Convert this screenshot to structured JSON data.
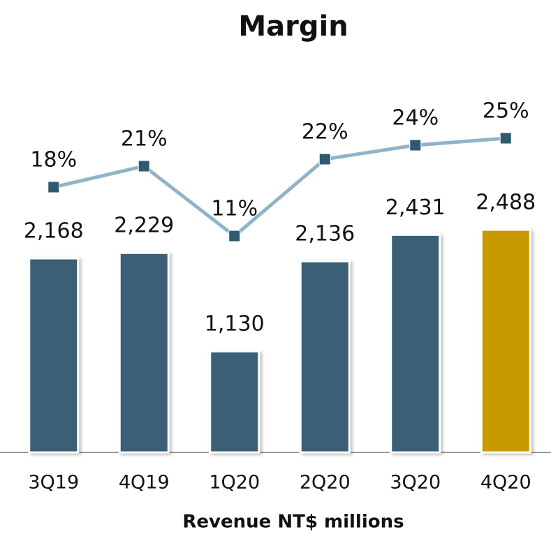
{
  "chart_data": {
    "type": "bar_line",
    "title": "Margin",
    "x_label": "Revenue NT$ millions",
    "categories": [
      "3Q19",
      "4Q19",
      "1Q20",
      "2Q20",
      "3Q20",
      "4Q20"
    ],
    "series": [
      {
        "name": "Revenue",
        "type": "bar",
        "colors": [
          "#3a5f75",
          "#3a5f75",
          "#3a5f75",
          "#3a5f75",
          "#3a5f75",
          "#c99a06"
        ],
        "values": [
          2168,
          2229,
          1130,
          2136,
          2431,
          2488
        ],
        "value_labels": [
          "2,168",
          "2,229",
          "1,130",
          "2,136",
          "2,431",
          "2,488"
        ]
      },
      {
        "name": "Margin",
        "type": "line",
        "axis": "y2",
        "color": "#8fb4c8",
        "marker_color": "#2f5a70",
        "values": [
          18,
          21,
          11,
          22,
          24,
          25
        ],
        "value_labels": [
          "18%",
          "21%",
          "11%",
          "22%",
          "24%",
          "25%"
        ]
      }
    ],
    "ylim": [
      0,
      3900
    ],
    "y2lim": [
      -20,
      30
    ]
  }
}
